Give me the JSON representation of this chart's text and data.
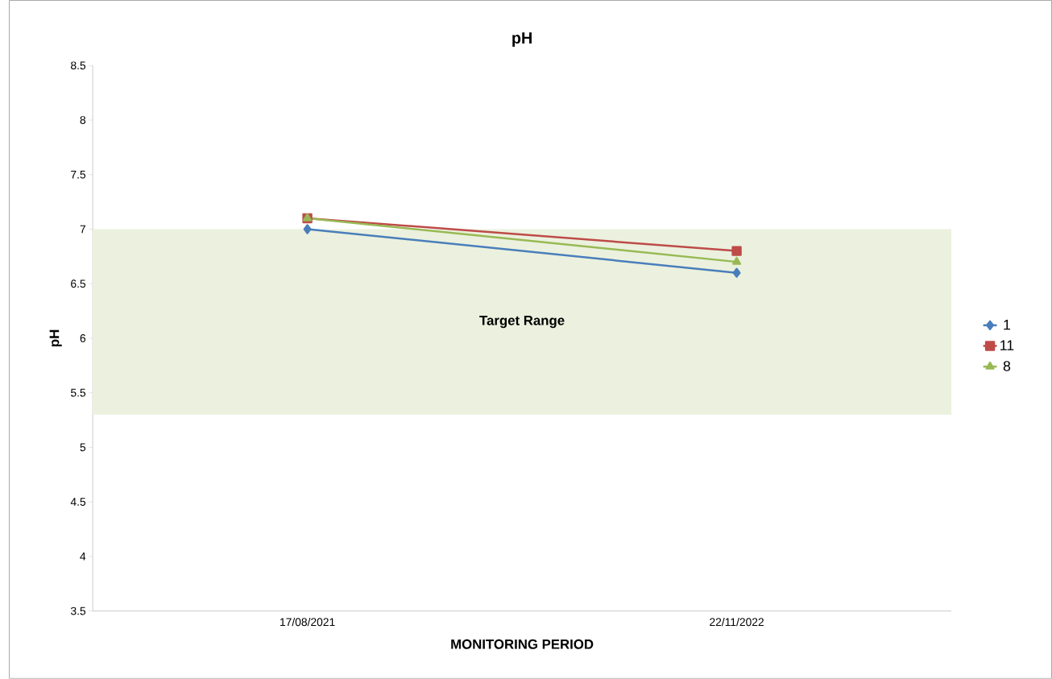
{
  "chart_data": {
    "type": "line",
    "title": "pH",
    "xlabel": "MONITORING PERIOD",
    "ylabel": "pH",
    "categories": [
      "17/08/2021",
      "22/11/2022"
    ],
    "series": [
      {
        "name": "1",
        "color": "#4a7ebb",
        "marker": "diamond",
        "values": [
          7.0,
          6.6
        ]
      },
      {
        "name": "11",
        "color": "#be4b48",
        "marker": "square",
        "values": [
          7.1,
          6.8
        ]
      },
      {
        "name": "8",
        "color": "#98b954",
        "marker": "triangle",
        "values": [
          7.1,
          6.7
        ]
      }
    ],
    "ylim": [
      3.5,
      8.5
    ],
    "yticks": [
      3.5,
      4,
      4.5,
      5,
      5.5,
      6,
      6.5,
      7,
      7.5,
      8,
      8.5
    ],
    "bands": [
      {
        "axis": "y",
        "from": 5.3,
        "to": 7.0,
        "label": "Target Range",
        "color": "#ebf1de"
      }
    ],
    "grid": false,
    "legend": "right"
  }
}
